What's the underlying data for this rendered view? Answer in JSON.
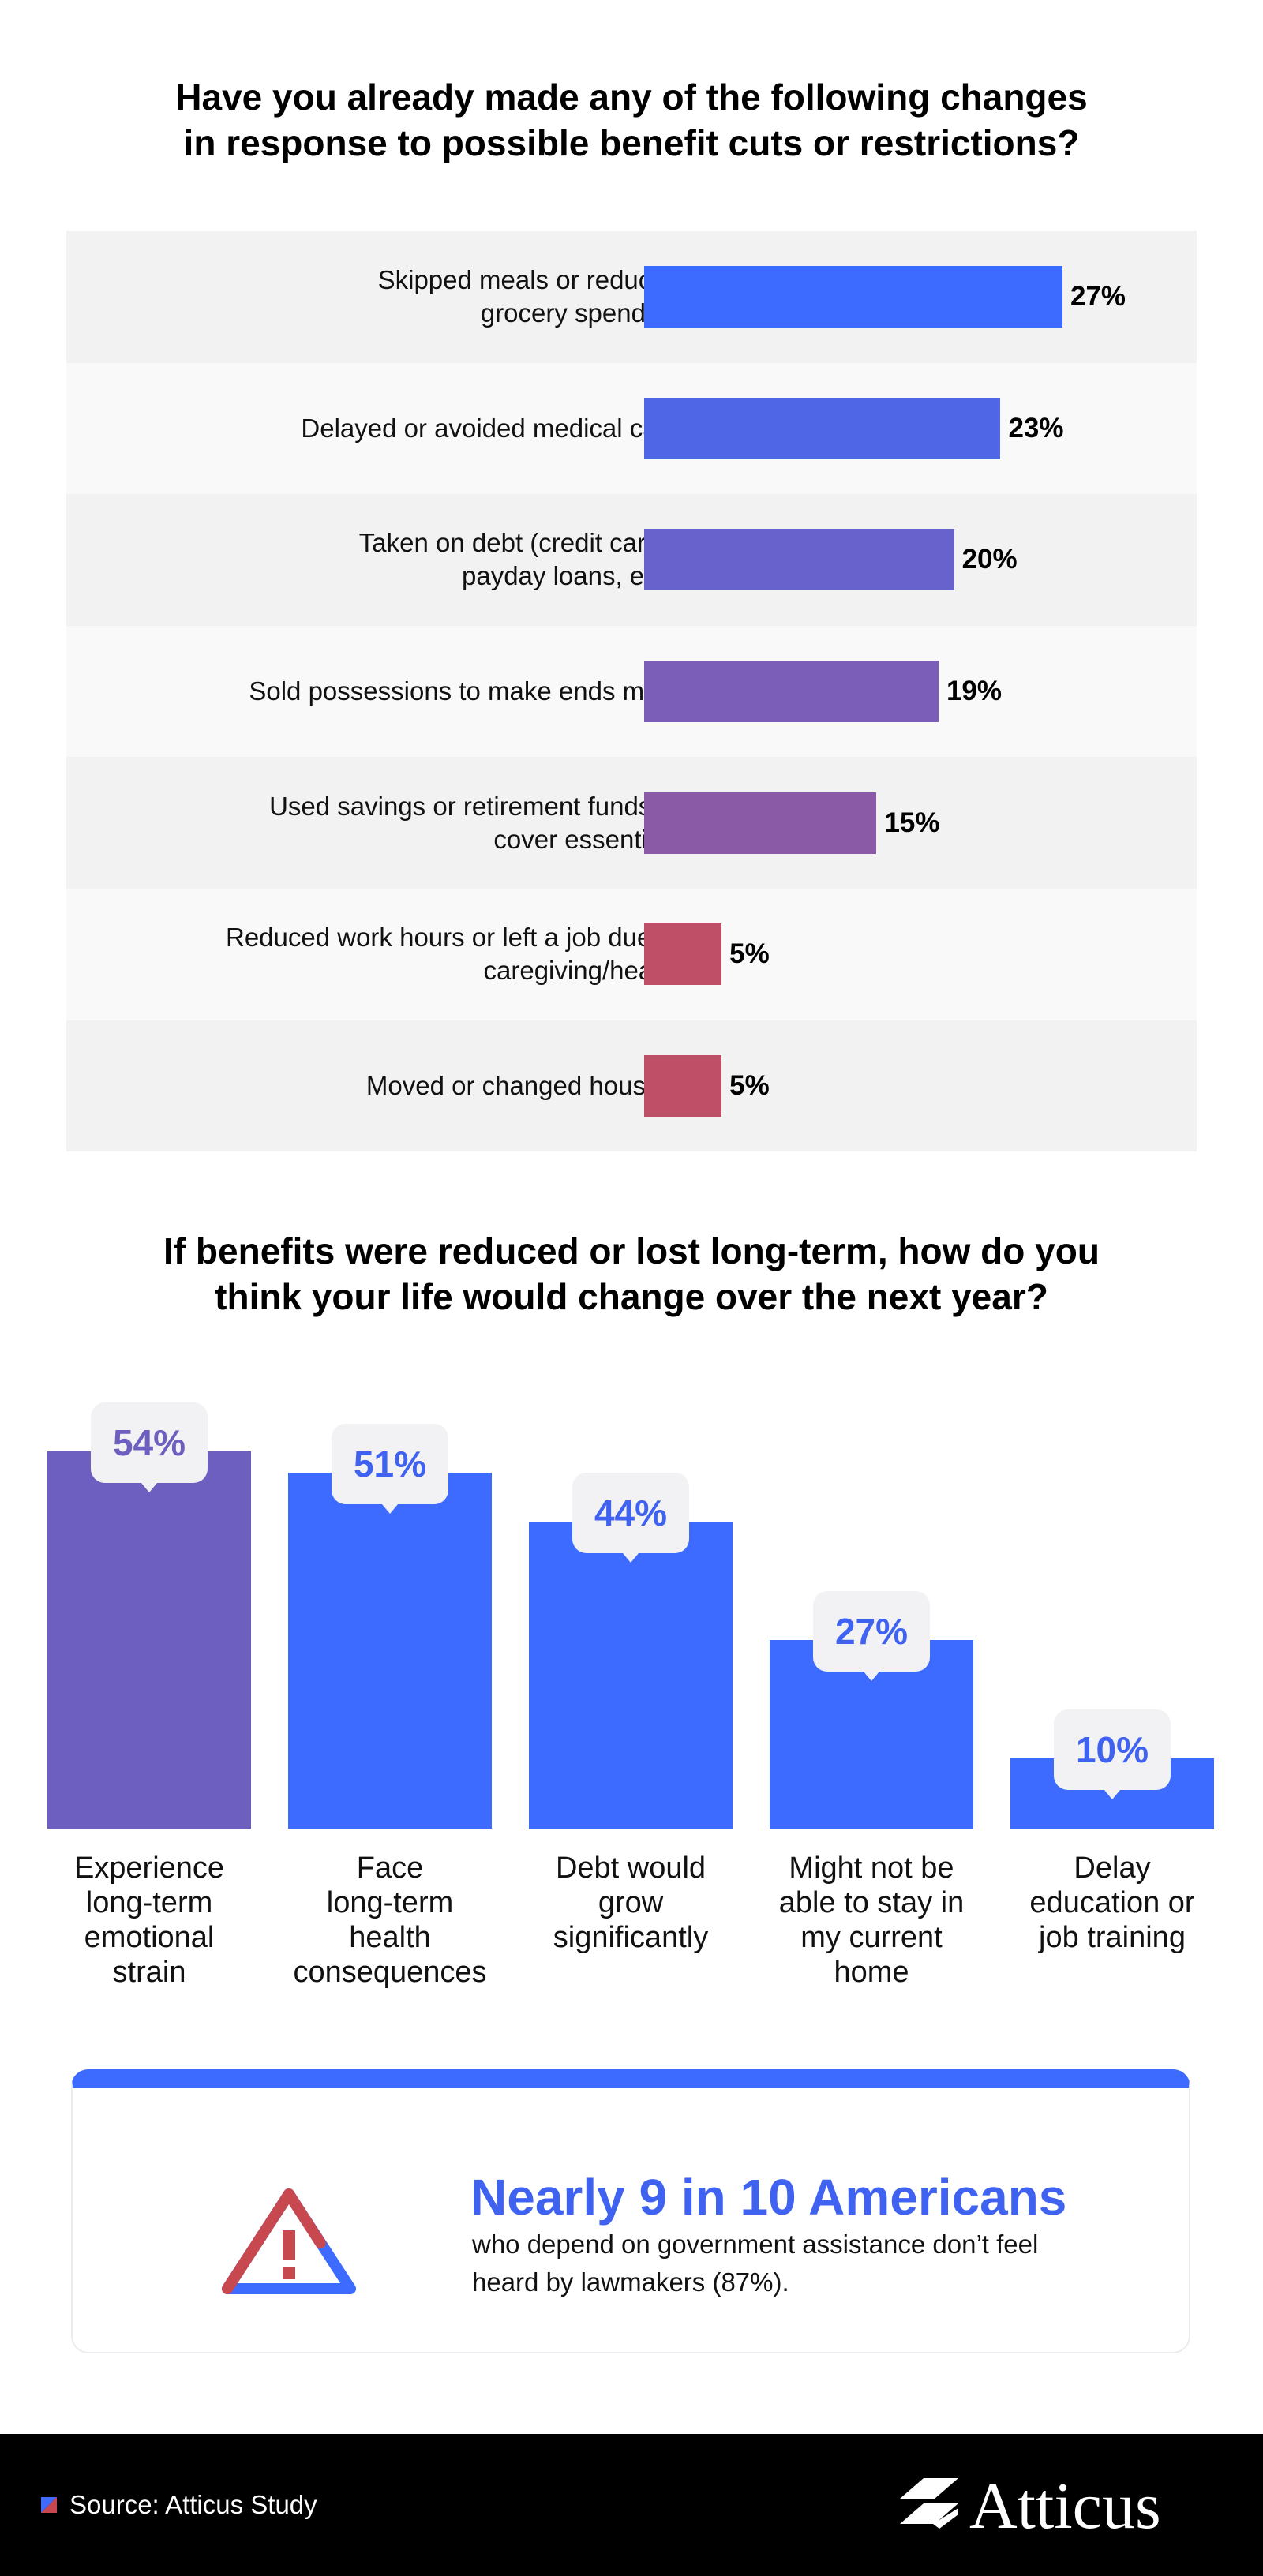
{
  "colors": {
    "blue": "#3d6aff",
    "purple": "#6c5fbf",
    "footer_bg": "#000000"
  },
  "chart_data": [
    {
      "type": "bar",
      "orientation": "horizontal",
      "title_lines": [
        "Have you already made any of the following changes",
        "in response to possible benefit cuts or restrictions?"
      ],
      "categories": [
        [
          "Skipped meals or reduced",
          "grocery spending"
        ],
        [
          "Delayed or avoided medical care"
        ],
        [
          "Taken on debt (credit cards,",
          "payday loans, etc.)"
        ],
        [
          "Sold possessions to make ends meet"
        ],
        [
          "Used savings or retirement funds to",
          "cover essentials"
        ],
        [
          "Reduced work hours or left a job due to",
          "caregiving/health"
        ],
        [
          "Moved or changed housing"
        ]
      ],
      "values": [
        27,
        23,
        20,
        19,
        15,
        5,
        5
      ],
      "value_labels": [
        "27%",
        "23%",
        "20%",
        "19%",
        "15%",
        "5%",
        "5%"
      ],
      "bar_colors": [
        "#3d6aff",
        "#4f66e6",
        "#6762cc",
        "#7a5eb8",
        "#8b5aa6",
        "#bf4f66",
        "#bf4f66"
      ],
      "row_backgrounds": [
        "#f2f2f2",
        "#f9f9f9"
      ],
      "xlim": [
        0,
        27
      ]
    },
    {
      "type": "bar",
      "orientation": "vertical",
      "title_lines": [
        "If benefits were reduced or lost long-term, how do you",
        "think your life would change over the next year?"
      ],
      "categories": [
        [
          "Experience",
          "long-term",
          "emotional",
          "strain"
        ],
        [
          "Face",
          "long-term",
          "health",
          "consequences"
        ],
        [
          "Debt would",
          "grow",
          "significantly"
        ],
        [
          "Might not be",
          "able to stay in",
          "my current",
          "home"
        ],
        [
          "Delay",
          "education or",
          "job training"
        ]
      ],
      "values": [
        54,
        51,
        44,
        27,
        10
      ],
      "value_labels": [
        "54%",
        "51%",
        "44%",
        "27%",
        "10%"
      ],
      "bar_colors": [
        "#6c5fbf",
        "#3d6aff",
        "#3d6aff",
        "#3d6aff",
        "#3d6aff"
      ],
      "label_colors": [
        "#6c5fbf",
        "#3f62f0",
        "#3f62f0",
        "#3f62f0",
        "#3f62f0"
      ],
      "ylim": [
        0,
        54
      ]
    }
  ],
  "callout": {
    "headline": "Nearly 9 in 10 Americans",
    "text_lines": [
      "who depend on government assistance don’t feel",
      "heard by lawmakers (87%)."
    ],
    "icon": "warning-icon"
  },
  "footer": {
    "source": "Source: Atticus Study",
    "logo_text": "Atticus"
  }
}
